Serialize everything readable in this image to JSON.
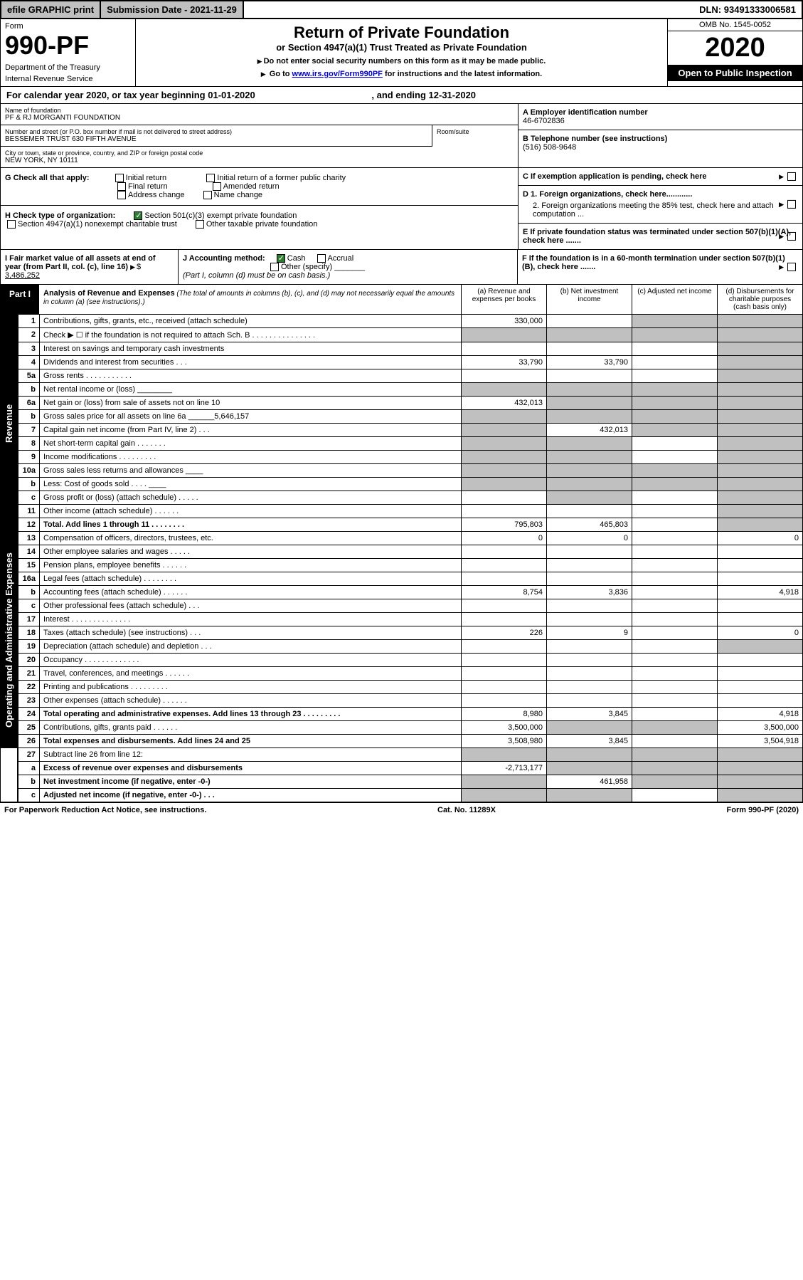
{
  "topbar": {
    "efile": "efile GRAPHIC print",
    "subdate_label": "Submission Date - ",
    "subdate": "2021-11-29",
    "dln_label": "DLN: ",
    "dln": "93491333006581"
  },
  "header": {
    "form_label": "Form",
    "form_no": "990-PF",
    "dept1": "Department of the Treasury",
    "dept2": "Internal Revenue Service",
    "title": "Return of Private Foundation",
    "subtitle": "or Section 4947(a)(1) Trust Treated as Private Foundation",
    "note1": "Do not enter social security numbers on this form as it may be made public.",
    "note2_pre": "Go to ",
    "note2_link": "www.irs.gov/Form990PF",
    "note2_post": " for instructions and the latest information.",
    "omb": "OMB No. 1545-0052",
    "year": "2020",
    "open": "Open to Public Inspection"
  },
  "calyear": {
    "text_pre": "For calendar year 2020, or tax year beginning ",
    "begin": "01-01-2020",
    "text_mid": " , and ending ",
    "end": "12-31-2020"
  },
  "info": {
    "name_label": "Name of foundation",
    "name": "PF & RJ MORGANTI FOUNDATION",
    "addr_label": "Number and street (or P.O. box number if mail is not delivered to street address)",
    "addr": "BESSEMER TRUST 630 FIFTH AVENUE",
    "room_label": "Room/suite",
    "city_label": "City or town, state or province, country, and ZIP or foreign postal code",
    "city": "NEW YORK, NY  10111",
    "ein_label": "A Employer identification number",
    "ein": "46-6702836",
    "phone_label": "B Telephone number (see instructions)",
    "phone": "(516) 508-9648",
    "c_label": "C If exemption application is pending, check here",
    "d1_label": "D 1. Foreign organizations, check here............",
    "d2_label": "2. Foreign organizations meeting the 85% test, check here and attach computation ...",
    "e_label": "E  If private foundation status was terminated under section 507(b)(1)(A), check here .......",
    "f_label": "F  If the foundation is in a 60-month termination under section 507(b)(1)(B), check here ......."
  },
  "g": {
    "label": "G Check all that apply:",
    "opts": [
      "Initial return",
      "Final return",
      "Address change",
      "Initial return of a former public charity",
      "Amended return",
      "Name change"
    ]
  },
  "h": {
    "label": "H Check type of organization:",
    "opt1": "Section 501(c)(3) exempt private foundation",
    "opt2": "Section 4947(a)(1) nonexempt charitable trust",
    "opt3": "Other taxable private foundation"
  },
  "i": {
    "label": "I Fair market value of all assets at end of year (from Part II, col. (c), line 16)",
    "value": "3,486,252"
  },
  "j": {
    "label": "J Accounting method:",
    "cash": "Cash",
    "accrual": "Accrual",
    "other": "Other (specify)",
    "note": "(Part I, column (d) must be on cash basis.)"
  },
  "part1": {
    "label": "Part I",
    "title": "Analysis of Revenue and Expenses",
    "note": " (The total of amounts in columns (b), (c), and (d) may not necessarily equal the amounts in column (a) (see instructions).)",
    "col_a": "(a) Revenue and expenses per books",
    "col_b": "(b) Net investment income",
    "col_c": "(c) Adjusted net income",
    "col_d": "(d) Disbursements for charitable purposes (cash basis only)"
  },
  "side": {
    "revenue": "Revenue",
    "expenses": "Operating and Administrative Expenses"
  },
  "rows": [
    {
      "n": "1",
      "desc": "Contributions, gifts, grants, etc., received (attach schedule)",
      "a": "330,000",
      "b": "",
      "c": "shade",
      "d": "shade"
    },
    {
      "n": "2",
      "desc": "Check ▶ ☐ if the foundation is not required to attach Sch. B   .  .  .  .  .  .  .  .  .  .  .  .  .  .  .",
      "a": "shade",
      "b": "shade",
      "c": "shade",
      "d": "shade"
    },
    {
      "n": "3",
      "desc": "Interest on savings and temporary cash investments",
      "a": "",
      "b": "",
      "c": "",
      "d": "shade"
    },
    {
      "n": "4",
      "desc": "Dividends and interest from securities   .   .   .",
      "a": "33,790",
      "b": "33,790",
      "c": "",
      "d": "shade"
    },
    {
      "n": "5a",
      "desc": "Gross rents   .   .   .   .   .   .   .   .   .   .   .",
      "a": "",
      "b": "",
      "c": "",
      "d": "shade"
    },
    {
      "n": "b",
      "desc": "Net rental income or (loss)  ________",
      "a": "shade",
      "b": "shade",
      "c": "shade",
      "d": "shade"
    },
    {
      "n": "6a",
      "desc": "Net gain or (loss) from sale of assets not on line 10",
      "a": "432,013",
      "b": "shade",
      "c": "shade",
      "d": "shade"
    },
    {
      "n": "b",
      "desc": "Gross sales price for all assets on line 6a ______5,646,157",
      "a": "shade",
      "b": "shade",
      "c": "shade",
      "d": "shade"
    },
    {
      "n": "7",
      "desc": "Capital gain net income (from Part IV, line 2)   .   .   .",
      "a": "shade",
      "b": "432,013",
      "c": "shade",
      "d": "shade"
    },
    {
      "n": "8",
      "desc": "Net short-term capital gain   .   .   .   .   .   .   .",
      "a": "shade",
      "b": "shade",
      "c": "",
      "d": "shade"
    },
    {
      "n": "9",
      "desc": "Income modifications   .   .   .   .   .   .   .   .   .",
      "a": "shade",
      "b": "shade",
      "c": "",
      "d": "shade"
    },
    {
      "n": "10a",
      "desc": "Gross sales less returns and allowances  ____",
      "a": "shade",
      "b": "shade",
      "c": "shade",
      "d": "shade"
    },
    {
      "n": "b",
      "desc": "Less: Cost of goods sold   .   .   .   .   ____",
      "a": "shade",
      "b": "shade",
      "c": "shade",
      "d": "shade"
    },
    {
      "n": "c",
      "desc": "Gross profit or (loss) (attach schedule)    .   .   .   .   .",
      "a": "",
      "b": "shade",
      "c": "",
      "d": "shade"
    },
    {
      "n": "11",
      "desc": "Other income (attach schedule)   .   .   .   .   .   .",
      "a": "",
      "b": "",
      "c": "",
      "d": "shade"
    },
    {
      "n": "12",
      "desc": "Total. Add lines 1 through 11   .   .   .   .   .   .   .   .",
      "bold": true,
      "a": "795,803",
      "b": "465,803",
      "c": "",
      "d": "shade"
    }
  ],
  "exp_rows": [
    {
      "n": "13",
      "desc": "Compensation of officers, directors, trustees, etc.",
      "a": "0",
      "b": "0",
      "c": "",
      "d": "0"
    },
    {
      "n": "14",
      "desc": "Other employee salaries and wages   .   .   .   .   .",
      "a": "",
      "b": "",
      "c": "",
      "d": ""
    },
    {
      "n": "15",
      "desc": "Pension plans, employee benefits   .   .   .   .   .   .",
      "a": "",
      "b": "",
      "c": "",
      "d": ""
    },
    {
      "n": "16a",
      "desc": "Legal fees (attach schedule)  .   .   .   .   .   .   .   .",
      "a": "",
      "b": "",
      "c": "",
      "d": ""
    },
    {
      "n": "b",
      "desc": "Accounting fees (attach schedule)  .   .   .   .   .   .",
      "a": "8,754",
      "b": "3,836",
      "c": "",
      "d": "4,918"
    },
    {
      "n": "c",
      "desc": "Other professional fees (attach schedule)   .   .   .",
      "a": "",
      "b": "",
      "c": "",
      "d": ""
    },
    {
      "n": "17",
      "desc": "Interest  .   .   .   .   .   .   .   .   .   .   .   .   .   .",
      "a": "",
      "b": "",
      "c": "",
      "d": ""
    },
    {
      "n": "18",
      "desc": "Taxes (attach schedule) (see instructions)    .   .   .",
      "a": "226",
      "b": "9",
      "c": "",
      "d": "0"
    },
    {
      "n": "19",
      "desc": "Depreciation (attach schedule) and depletion   .   .   .",
      "a": "",
      "b": "",
      "c": "",
      "d": "shade"
    },
    {
      "n": "20",
      "desc": "Occupancy  .   .   .   .   .   .   .   .   .   .   .   .   .",
      "a": "",
      "b": "",
      "c": "",
      "d": ""
    },
    {
      "n": "21",
      "desc": "Travel, conferences, and meetings  .   .   .   .   .   .",
      "a": "",
      "b": "",
      "c": "",
      "d": ""
    },
    {
      "n": "22",
      "desc": "Printing and publications  .   .   .   .   .   .   .   .   .",
      "a": "",
      "b": "",
      "c": "",
      "d": ""
    },
    {
      "n": "23",
      "desc": "Other expenses (attach schedule)  .   .   .   .   .   .",
      "a": "",
      "b": "",
      "c": "",
      "d": ""
    },
    {
      "n": "24",
      "desc": "Total operating and administrative expenses. Add lines 13 through 23   .   .   .   .   .   .   .   .   .",
      "bold": true,
      "a": "8,980",
      "b": "3,845",
      "c": "",
      "d": "4,918"
    },
    {
      "n": "25",
      "desc": "Contributions, gifts, grants paid    .   .   .   .   .   .",
      "a": "3,500,000",
      "b": "shade",
      "c": "shade",
      "d": "3,500,000"
    },
    {
      "n": "26",
      "desc": "Total expenses and disbursements. Add lines 24 and 25",
      "bold": true,
      "a": "3,508,980",
      "b": "3,845",
      "c": "",
      "d": "3,504,918"
    }
  ],
  "bottom_rows": [
    {
      "n": "27",
      "desc": "Subtract line 26 from line 12:",
      "a": "shade",
      "b": "shade",
      "c": "shade",
      "d": "shade"
    },
    {
      "n": "a",
      "desc": "Excess of revenue over expenses and disbursements",
      "bold": true,
      "a": "-2,713,177",
      "b": "shade",
      "c": "shade",
      "d": "shade"
    },
    {
      "n": "b",
      "desc": "Net investment income (if negative, enter -0-)",
      "bold": true,
      "a": "shade",
      "b": "461,958",
      "c": "shade",
      "d": "shade"
    },
    {
      "n": "c",
      "desc": "Adjusted net income (if negative, enter -0-)   .   .   .",
      "bold": true,
      "a": "shade",
      "b": "shade",
      "c": "",
      "d": "shade"
    }
  ],
  "footer": {
    "left": "For Paperwork Reduction Act Notice, see instructions.",
    "mid": "Cat. No. 11289X",
    "right": "Form 990-PF (2020)"
  }
}
